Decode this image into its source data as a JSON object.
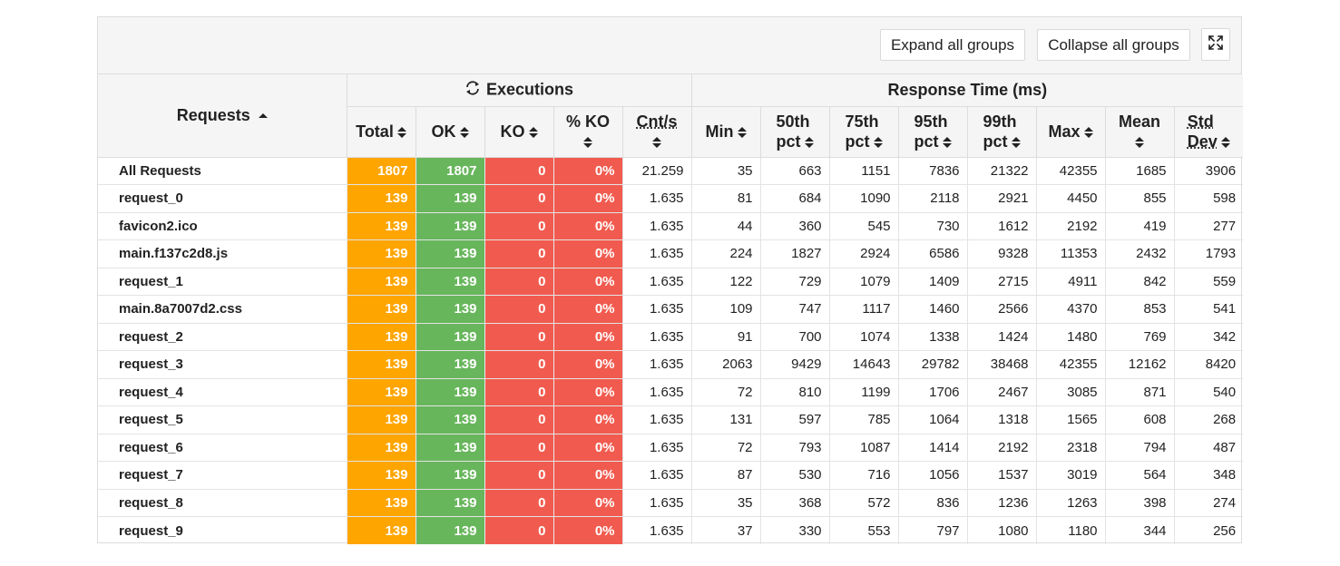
{
  "toolbar": {
    "expand_label": "Expand all groups",
    "collapse_label": "Collapse all groups",
    "fullscreen_icon": "expand-arrows-icon"
  },
  "table": {
    "requests_header": "Requests",
    "executions_header": "Executions",
    "response_time_header": "Response Time (ms)",
    "columns": {
      "total": "Total",
      "ok": "OK",
      "ko": "KO",
      "pct_ko": "% KO",
      "cnt_s": "Cnt/s",
      "min": "Min",
      "p50_a": "50th",
      "p50_b": "pct",
      "p75_a": "75th",
      "p75_b": "pct",
      "p95_a": "95th",
      "p95_b": "pct",
      "p99_a": "99th",
      "p99_b": "pct",
      "max": "Max",
      "mean": "Mean",
      "std_a": "Std",
      "std_b": "Dev"
    },
    "rows": [
      {
        "name": "All Requests",
        "total": "1807",
        "ok": "1807",
        "ko": "0",
        "pko": "0%",
        "cnt": "21.259",
        "min": "35",
        "p50": "663",
        "p75": "1151",
        "p95": "7836",
        "p99": "21322",
        "max": "42355",
        "mean": "1685",
        "std": "3906"
      },
      {
        "name": "request_0",
        "total": "139",
        "ok": "139",
        "ko": "0",
        "pko": "0%",
        "cnt": "1.635",
        "min": "81",
        "p50": "684",
        "p75": "1090",
        "p95": "2118",
        "p99": "2921",
        "max": "4450",
        "mean": "855",
        "std": "598"
      },
      {
        "name": "favicon2.ico",
        "total": "139",
        "ok": "139",
        "ko": "0",
        "pko": "0%",
        "cnt": "1.635",
        "min": "44",
        "p50": "360",
        "p75": "545",
        "p95": "730",
        "p99": "1612",
        "max": "2192",
        "mean": "419",
        "std": "277"
      },
      {
        "name": "main.f137c2d8.js",
        "total": "139",
        "ok": "139",
        "ko": "0",
        "pko": "0%",
        "cnt": "1.635",
        "min": "224",
        "p50": "1827",
        "p75": "2924",
        "p95": "6586",
        "p99": "9328",
        "max": "11353",
        "mean": "2432",
        "std": "1793"
      },
      {
        "name": "request_1",
        "total": "139",
        "ok": "139",
        "ko": "0",
        "pko": "0%",
        "cnt": "1.635",
        "min": "122",
        "p50": "729",
        "p75": "1079",
        "p95": "1409",
        "p99": "2715",
        "max": "4911",
        "mean": "842",
        "std": "559"
      },
      {
        "name": "main.8a7007d2.css",
        "total": "139",
        "ok": "139",
        "ko": "0",
        "pko": "0%",
        "cnt": "1.635",
        "min": "109",
        "p50": "747",
        "p75": "1117",
        "p95": "1460",
        "p99": "2566",
        "max": "4370",
        "mean": "853",
        "std": "541"
      },
      {
        "name": "request_2",
        "total": "139",
        "ok": "139",
        "ko": "0",
        "pko": "0%",
        "cnt": "1.635",
        "min": "91",
        "p50": "700",
        "p75": "1074",
        "p95": "1338",
        "p99": "1424",
        "max": "1480",
        "mean": "769",
        "std": "342"
      },
      {
        "name": "request_3",
        "total": "139",
        "ok": "139",
        "ko": "0",
        "pko": "0%",
        "cnt": "1.635",
        "min": "2063",
        "p50": "9429",
        "p75": "14643",
        "p95": "29782",
        "p99": "38468",
        "max": "42355",
        "mean": "12162",
        "std": "8420"
      },
      {
        "name": "request_4",
        "total": "139",
        "ok": "139",
        "ko": "0",
        "pko": "0%",
        "cnt": "1.635",
        "min": "72",
        "p50": "810",
        "p75": "1199",
        "p95": "1706",
        "p99": "2467",
        "max": "3085",
        "mean": "871",
        "std": "540"
      },
      {
        "name": "request_5",
        "total": "139",
        "ok": "139",
        "ko": "0",
        "pko": "0%",
        "cnt": "1.635",
        "min": "131",
        "p50": "597",
        "p75": "785",
        "p95": "1064",
        "p99": "1318",
        "max": "1565",
        "mean": "608",
        "std": "268"
      },
      {
        "name": "request_6",
        "total": "139",
        "ok": "139",
        "ko": "0",
        "pko": "0%",
        "cnt": "1.635",
        "min": "72",
        "p50": "793",
        "p75": "1087",
        "p95": "1414",
        "p99": "2192",
        "max": "2318",
        "mean": "794",
        "std": "487"
      },
      {
        "name": "request_7",
        "total": "139",
        "ok": "139",
        "ko": "0",
        "pko": "0%",
        "cnt": "1.635",
        "min": "87",
        "p50": "530",
        "p75": "716",
        "p95": "1056",
        "p99": "1537",
        "max": "3019",
        "mean": "564",
        "std": "348"
      },
      {
        "name": "request_8",
        "total": "139",
        "ok": "139",
        "ko": "0",
        "pko": "0%",
        "cnt": "1.635",
        "min": "35",
        "p50": "368",
        "p75": "572",
        "p95": "836",
        "p99": "1236",
        "max": "1263",
        "mean": "398",
        "std": "274"
      },
      {
        "name": "request_9",
        "total": "139",
        "ok": "139",
        "ko": "0",
        "pko": "0%",
        "cnt": "1.635",
        "min": "37",
        "p50": "330",
        "p75": "553",
        "p95": "797",
        "p99": "1080",
        "max": "1180",
        "mean": "344",
        "std": "256"
      }
    ]
  },
  "colors": {
    "total": "#ffa500",
    "ok": "#68b65c",
    "ko": "#f15b4f",
    "header_bg": "#f5f5f5"
  }
}
